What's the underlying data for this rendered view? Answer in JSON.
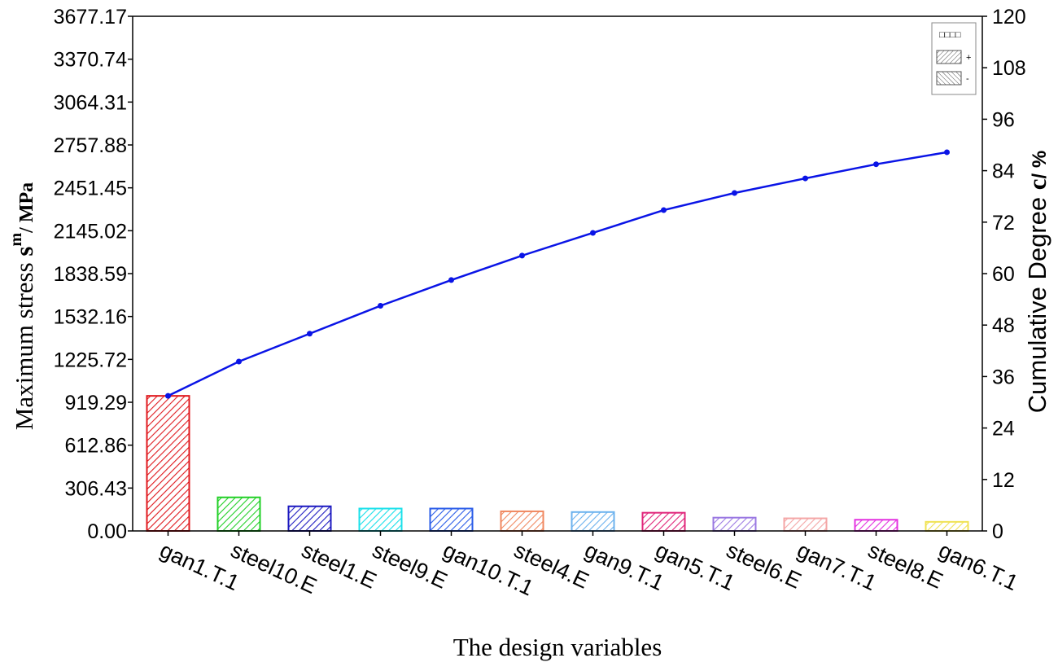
{
  "chart_data": {
    "type": "bar",
    "categories": [
      "gan1.T.1",
      "steel10.E",
      "steel1.E",
      "steel9.E",
      "gan10.T.1",
      "steel4.E",
      "gan9.T.1",
      "gan5.T.1",
      "steel6.E",
      "gan7.T.1",
      "steel8.E",
      "gan6.T.1"
    ],
    "series": [
      {
        "values": [
          965,
          240,
          176,
          160,
          160,
          140,
          135,
          130,
          95,
          90,
          80,
          65
        ],
        "colors": [
          "#e0191e",
          "#22d027",
          "#1c19c0",
          "#1ae0ea",
          "#2a5ce8",
          "#f08860",
          "#6cb2ee",
          "#e0257a",
          "#9a78e2",
          "#f4a6a6",
          "#e432e0",
          "#f0e252"
        ],
        "axis": "left"
      },
      {
        "values": [
          31.5,
          39.5,
          46,
          52.5,
          58.5,
          64.2,
          69.5,
          74.8,
          78.8,
          82.2,
          85.5,
          88.3
        ],
        "color": "#0a14e6",
        "axis": "right"
      }
    ],
    "xlabel": "The design variables",
    "ylabel": {
      "text": "Maximum stress",
      "sym": "s",
      "sup": "m",
      "unit": "/ MPa"
    },
    "y2label": {
      "text": "Cumulative Degree",
      "sym": "c",
      "unit": "/ %"
    },
    "ylim": [
      0,
      3677.17
    ],
    "y2lim": [
      0,
      120
    ],
    "yticks": [
      "0.00",
      "306.43",
      "612.86",
      "919.29",
      "1225.72",
      "1532.16",
      "1838.59",
      "2145.02",
      "2451.45",
      "2757.88",
      "3064.31",
      "3370.74",
      "3677.17"
    ],
    "y2ticks": [
      "0",
      "12",
      "24",
      "36",
      "48",
      "60",
      "72",
      "84",
      "96",
      "108",
      "120"
    ],
    "legend": {
      "position": "top-right",
      "title": "□□□□",
      "items": [
        "+",
        "-"
      ]
    },
    "grid": false
  }
}
